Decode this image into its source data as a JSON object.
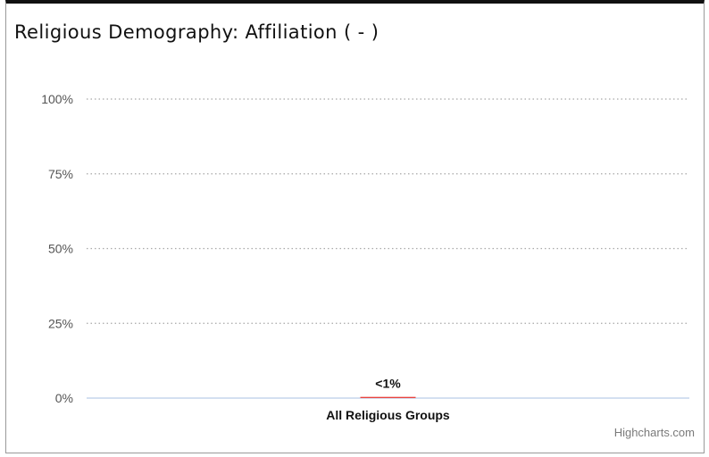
{
  "header": {
    "title": "Religious Demography: Affiliation ( - )"
  },
  "credit": "Highcharts.com",
  "colors": {
    "bar": "#e8423d",
    "grid": "#a8a8a8",
    "baseline": "#a9c2e3",
    "axis_text": "#555555",
    "label_text": "#111111"
  },
  "chart_data": {
    "type": "bar",
    "title": "Religious Demography: Affiliation ( - )",
    "categories": [
      "All Religious Groups"
    ],
    "series": [
      {
        "values": [
          0.4
        ]
      }
    ],
    "data_labels": [
      "<1%"
    ],
    "y_ticks": [
      "0%",
      "25%",
      "50%",
      "75%",
      "100%"
    ],
    "ylim": [
      0,
      100
    ],
    "grid": true,
    "grid_style": "dotted",
    "legend": "none"
  }
}
